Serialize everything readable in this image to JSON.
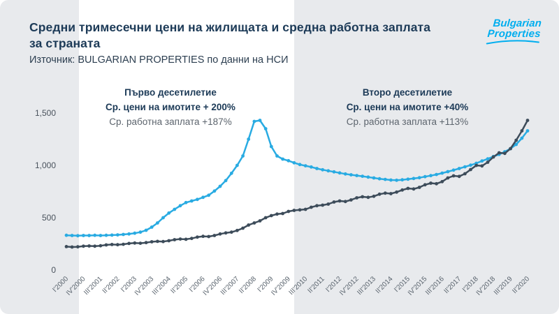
{
  "page": {
    "title_line1": "Средни тримесечни цени на жилищата и средна работна заплата",
    "title_line2": " за страната",
    "subtitle": "Източник: BULGARIAN PROPERTIES по данни на НСИ",
    "brand_color": "#00aeef",
    "title_color": "#1c3a57",
    "logo_line1": "Bulgarian",
    "logo_line2": "Properties"
  },
  "annotations": [
    {
      "title": "Първо десетилетие",
      "line1": "Ср. цени на имотите + 200%",
      "line2": "Ср. работна заплата +187%"
    },
    {
      "title": "Второ десетилетие",
      "line1": "Ср. цени на имотите +40%",
      "line2": "Ср. работна заплата +113%"
    }
  ],
  "chart_data": {
    "type": "line",
    "title": "Средни тримесечни цени на жилищата и средна работна заплата за страната",
    "xlabel": "",
    "ylabel": "",
    "ylim": [
      0,
      1500
    ],
    "grid": false,
    "legend": "none",
    "y_tick_values": [
      0,
      500,
      1000,
      1500
    ],
    "y_tick_labels": [
      "0",
      "500",
      "1,000",
      "1,500"
    ],
    "label_every": 3,
    "x_labels": [
      "I'2000",
      "IV'2000",
      "III'2001",
      "II'2002",
      "I'2003",
      "IV'2003",
      "III'2004",
      "II'2005",
      "I'2006",
      "IV'2006",
      "III'2007",
      "II'2008",
      "I'2009",
      "IV'2009",
      "III'2010",
      "II'2011",
      "I'2012",
      "IV'2012",
      "III'2013",
      "II'2014",
      "I'2015",
      "IV'2015",
      "III'2016",
      "II'2017",
      "I'2018",
      "IV'2018",
      "III'2019",
      "II'2020"
    ],
    "series": [
      {
        "name": "Ср. цени на имотите",
        "color": "#29abe2",
        "values": [
          332,
          330,
          328,
          330,
          330,
          332,
          330,
          332,
          334,
          336,
          340,
          345,
          352,
          362,
          380,
          410,
          450,
          500,
          545,
          580,
          615,
          645,
          660,
          675,
          695,
          715,
          755,
          800,
          855,
          925,
          1000,
          1090,
          1250,
          1420,
          1430,
          1350,
          1180,
          1090,
          1060,
          1045,
          1025,
          1008,
          996,
          985,
          970,
          958,
          948,
          938,
          928,
          918,
          910,
          903,
          896,
          888,
          880,
          872,
          866,
          860,
          858,
          862,
          868,
          875,
          882,
          892,
          902,
          913,
          926,
          940,
          955,
          970,
          986,
          1002,
          1020,
          1042,
          1062,
          1085,
          1105,
          1130,
          1160,
          1200,
          1260,
          1330
        ]
      },
      {
        "name": "Ср. работна заплата",
        "color": "#3d4c5a",
        "values": [
          224,
          220,
          222,
          228,
          230,
          228,
          232,
          240,
          244,
          242,
          246,
          254,
          258,
          256,
          262,
          270,
          274,
          272,
          280,
          290,
          296,
          294,
          302,
          315,
          322,
          320,
          330,
          345,
          355,
          362,
          378,
          400,
          430,
          450,
          470,
          500,
          520,
          535,
          540,
          560,
          570,
          575,
          580,
          600,
          615,
          620,
          630,
          650,
          660,
          655,
          670,
          690,
          700,
          695,
          705,
          725,
          735,
          730,
          745,
          765,
          780,
          775,
          790,
          815,
          830,
          825,
          845,
          880,
          900,
          895,
          920,
          960,
          1000,
          995,
          1030,
          1080,
          1120,
          1115,
          1160,
          1240,
          1330,
          1430
        ]
      }
    ]
  }
}
